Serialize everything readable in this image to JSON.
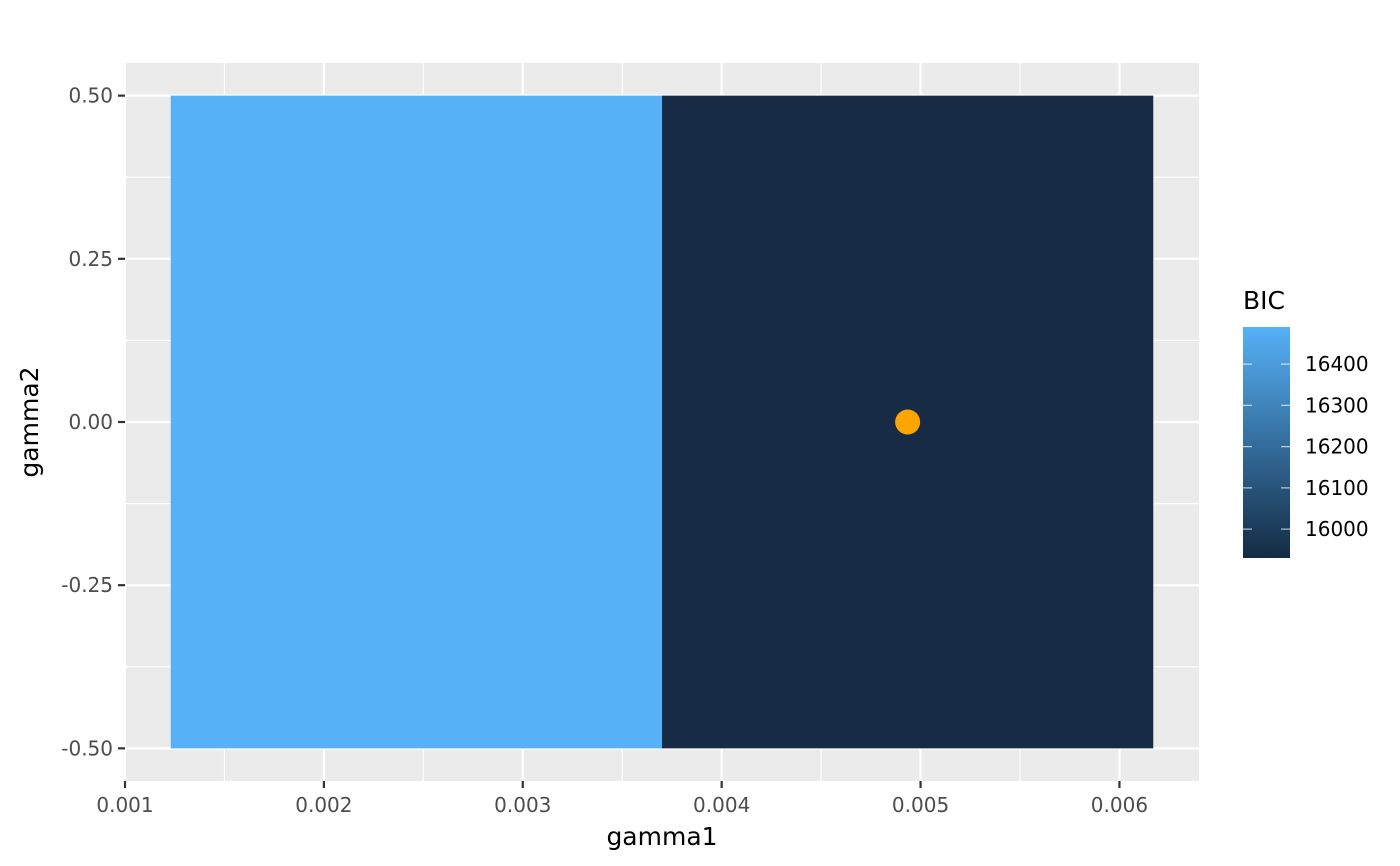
{
  "chart_data": {
    "type": "heatmap",
    "title": "",
    "xlabel": "gamma1",
    "ylabel": "gamma2",
    "xlim": [
      0.001,
      0.0064
    ],
    "ylim": [
      -0.55,
      0.55
    ],
    "x_ticks": [
      0.001,
      0.002,
      0.003,
      0.004,
      0.005,
      0.006
    ],
    "x_tick_labels": [
      "0.001",
      "0.002",
      "0.003",
      "0.004",
      "0.005",
      "0.006"
    ],
    "y_ticks": [
      -0.5,
      -0.25,
      0.0,
      0.25,
      0.5
    ],
    "y_tick_labels": [
      "-0.50",
      "-0.25",
      "0.00",
      "0.25",
      "0.50"
    ],
    "grid": true,
    "tiles": [
      {
        "x_center": 0.002465,
        "x_width": 0.00247,
        "y_center": 0.0,
        "y_height": 1.0,
        "bic": 16490,
        "fill": "#56b1f7"
      },
      {
        "x_center": 0.004935,
        "x_width": 0.00247,
        "y_center": 0.0,
        "y_height": 1.0,
        "bic": 15930,
        "fill": "#172c44"
      }
    ],
    "points": [
      {
        "x": 0.004935,
        "y": 0.0,
        "color": "#ffa500"
      }
    ],
    "legend": {
      "title": "BIC",
      "position": "right",
      "type": "colorbar",
      "range": [
        15930,
        16490
      ],
      "breaks": [
        16400,
        16300,
        16200,
        16100,
        16000
      ],
      "break_labels": [
        "16400",
        "16300",
        "16200",
        "16100",
        "16000"
      ],
      "color_low": "#132b43",
      "color_high": "#56b1f7"
    },
    "colors": {
      "panel_background": "#ebebeb",
      "grid_line": "#ffffff",
      "highlight_point": "#ffa500"
    }
  }
}
